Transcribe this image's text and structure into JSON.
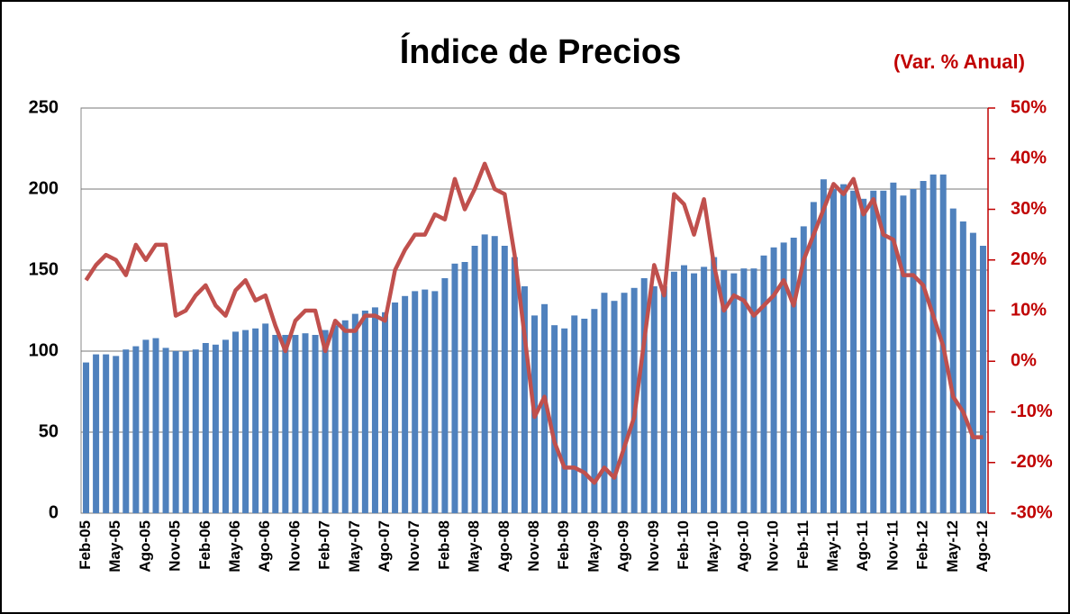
{
  "chart_data": {
    "type": "bar-line",
    "title": "Índice de Precios",
    "y2_label": "(Var. % Anual)",
    "categories": [
      "Feb-05",
      null,
      null,
      "May-05",
      null,
      null,
      "Ago-05",
      null,
      null,
      "Nov-05",
      null,
      null,
      "Feb-06",
      null,
      null,
      "May-06",
      null,
      null,
      "Ago-06",
      null,
      null,
      "Nov-06",
      null,
      null,
      "Feb-07",
      null,
      null,
      "May-07",
      null,
      null,
      "Ago-07",
      null,
      null,
      "Nov-07",
      null,
      null,
      "Feb-08",
      null,
      null,
      "May-08",
      null,
      null,
      "Ago-08",
      null,
      null,
      "Nov-08",
      null,
      null,
      "Feb-09",
      null,
      null,
      "May-09",
      null,
      null,
      "Ago-09",
      null,
      null,
      "Nov-09",
      null,
      null,
      "Feb-10",
      null,
      null,
      "May-10",
      null,
      null,
      "Ago-10",
      null,
      null,
      "Nov-10",
      null,
      null,
      "Feb-11",
      null,
      null,
      "May-11",
      null,
      null,
      "Ago-11",
      null,
      null,
      "Nov-11",
      null,
      null,
      "Feb-12",
      null,
      null,
      "May-12",
      null,
      null,
      "Ago-12"
    ],
    "series": [
      {
        "type": "bar",
        "color": "#4f81bd",
        "values": [
          93,
          98,
          98,
          97,
          101,
          103,
          107,
          108,
          102,
          100,
          100,
          101,
          105,
          104,
          107,
          112,
          113,
          114,
          117,
          110,
          110,
          110,
          111,
          110,
          113,
          116,
          119,
          123,
          125,
          127,
          124,
          130,
          134,
          137,
          138,
          137,
          145,
          154,
          155,
          165,
          172,
          171,
          165,
          158,
          140,
          122,
          129,
          116,
          114,
          122,
          120,
          126,
          136,
          131,
          136,
          139,
          145,
          140,
          140,
          149,
          153,
          148,
          152,
          158,
          150,
          148,
          151,
          151,
          159,
          164,
          167,
          170,
          177,
          192,
          206,
          200,
          203,
          199,
          194,
          199,
          199,
          204,
          196,
          200,
          205,
          209,
          209,
          188,
          180,
          173,
          165
        ]
      },
      {
        "type": "line",
        "axis": "y2",
        "color": "#c0504d",
        "values": [
          16,
          19,
          21,
          20,
          17,
          23,
          20,
          23,
          23,
          9,
          10,
          13,
          15,
          11,
          9,
          14,
          16,
          12,
          13,
          7,
          2,
          8,
          10,
          10,
          2,
          8,
          6,
          6,
          9,
          9,
          8,
          18,
          22,
          25,
          25,
          29,
          28,
          36,
          30,
          34,
          39,
          34,
          33,
          21,
          5,
          -11,
          -7,
          -16,
          -21,
          -21,
          -22,
          -24,
          -21,
          -23,
          -17,
          -11,
          4,
          19,
          13,
          33,
          31,
          25,
          32,
          19,
          10,
          13,
          12,
          9,
          11,
          13,
          16,
          11,
          20,
          25,
          30,
          35,
          33,
          36,
          29,
          32,
          25,
          24,
          17,
          17,
          15,
          9,
          3,
          -7,
          -10,
          -15,
          -15
        ]
      }
    ],
    "ylim": [
      0,
      250
    ],
    "yticks": [
      0,
      50,
      100,
      150,
      200,
      250
    ],
    "y2lim": [
      -30,
      50
    ],
    "y2ticks": [
      {
        "value": -30,
        "label": "-30%"
      },
      {
        "value": -20,
        "label": "-20%"
      },
      {
        "value": -10,
        "label": "-10%"
      },
      {
        "value": 0,
        "label": "0%"
      },
      {
        "value": 10,
        "label": "10%"
      },
      {
        "value": 20,
        "label": "20%"
      },
      {
        "value": 30,
        "label": "30%"
      },
      {
        "value": 40,
        "label": "40%"
      },
      {
        "value": 50,
        "label": "50%"
      }
    ],
    "grid": true
  }
}
